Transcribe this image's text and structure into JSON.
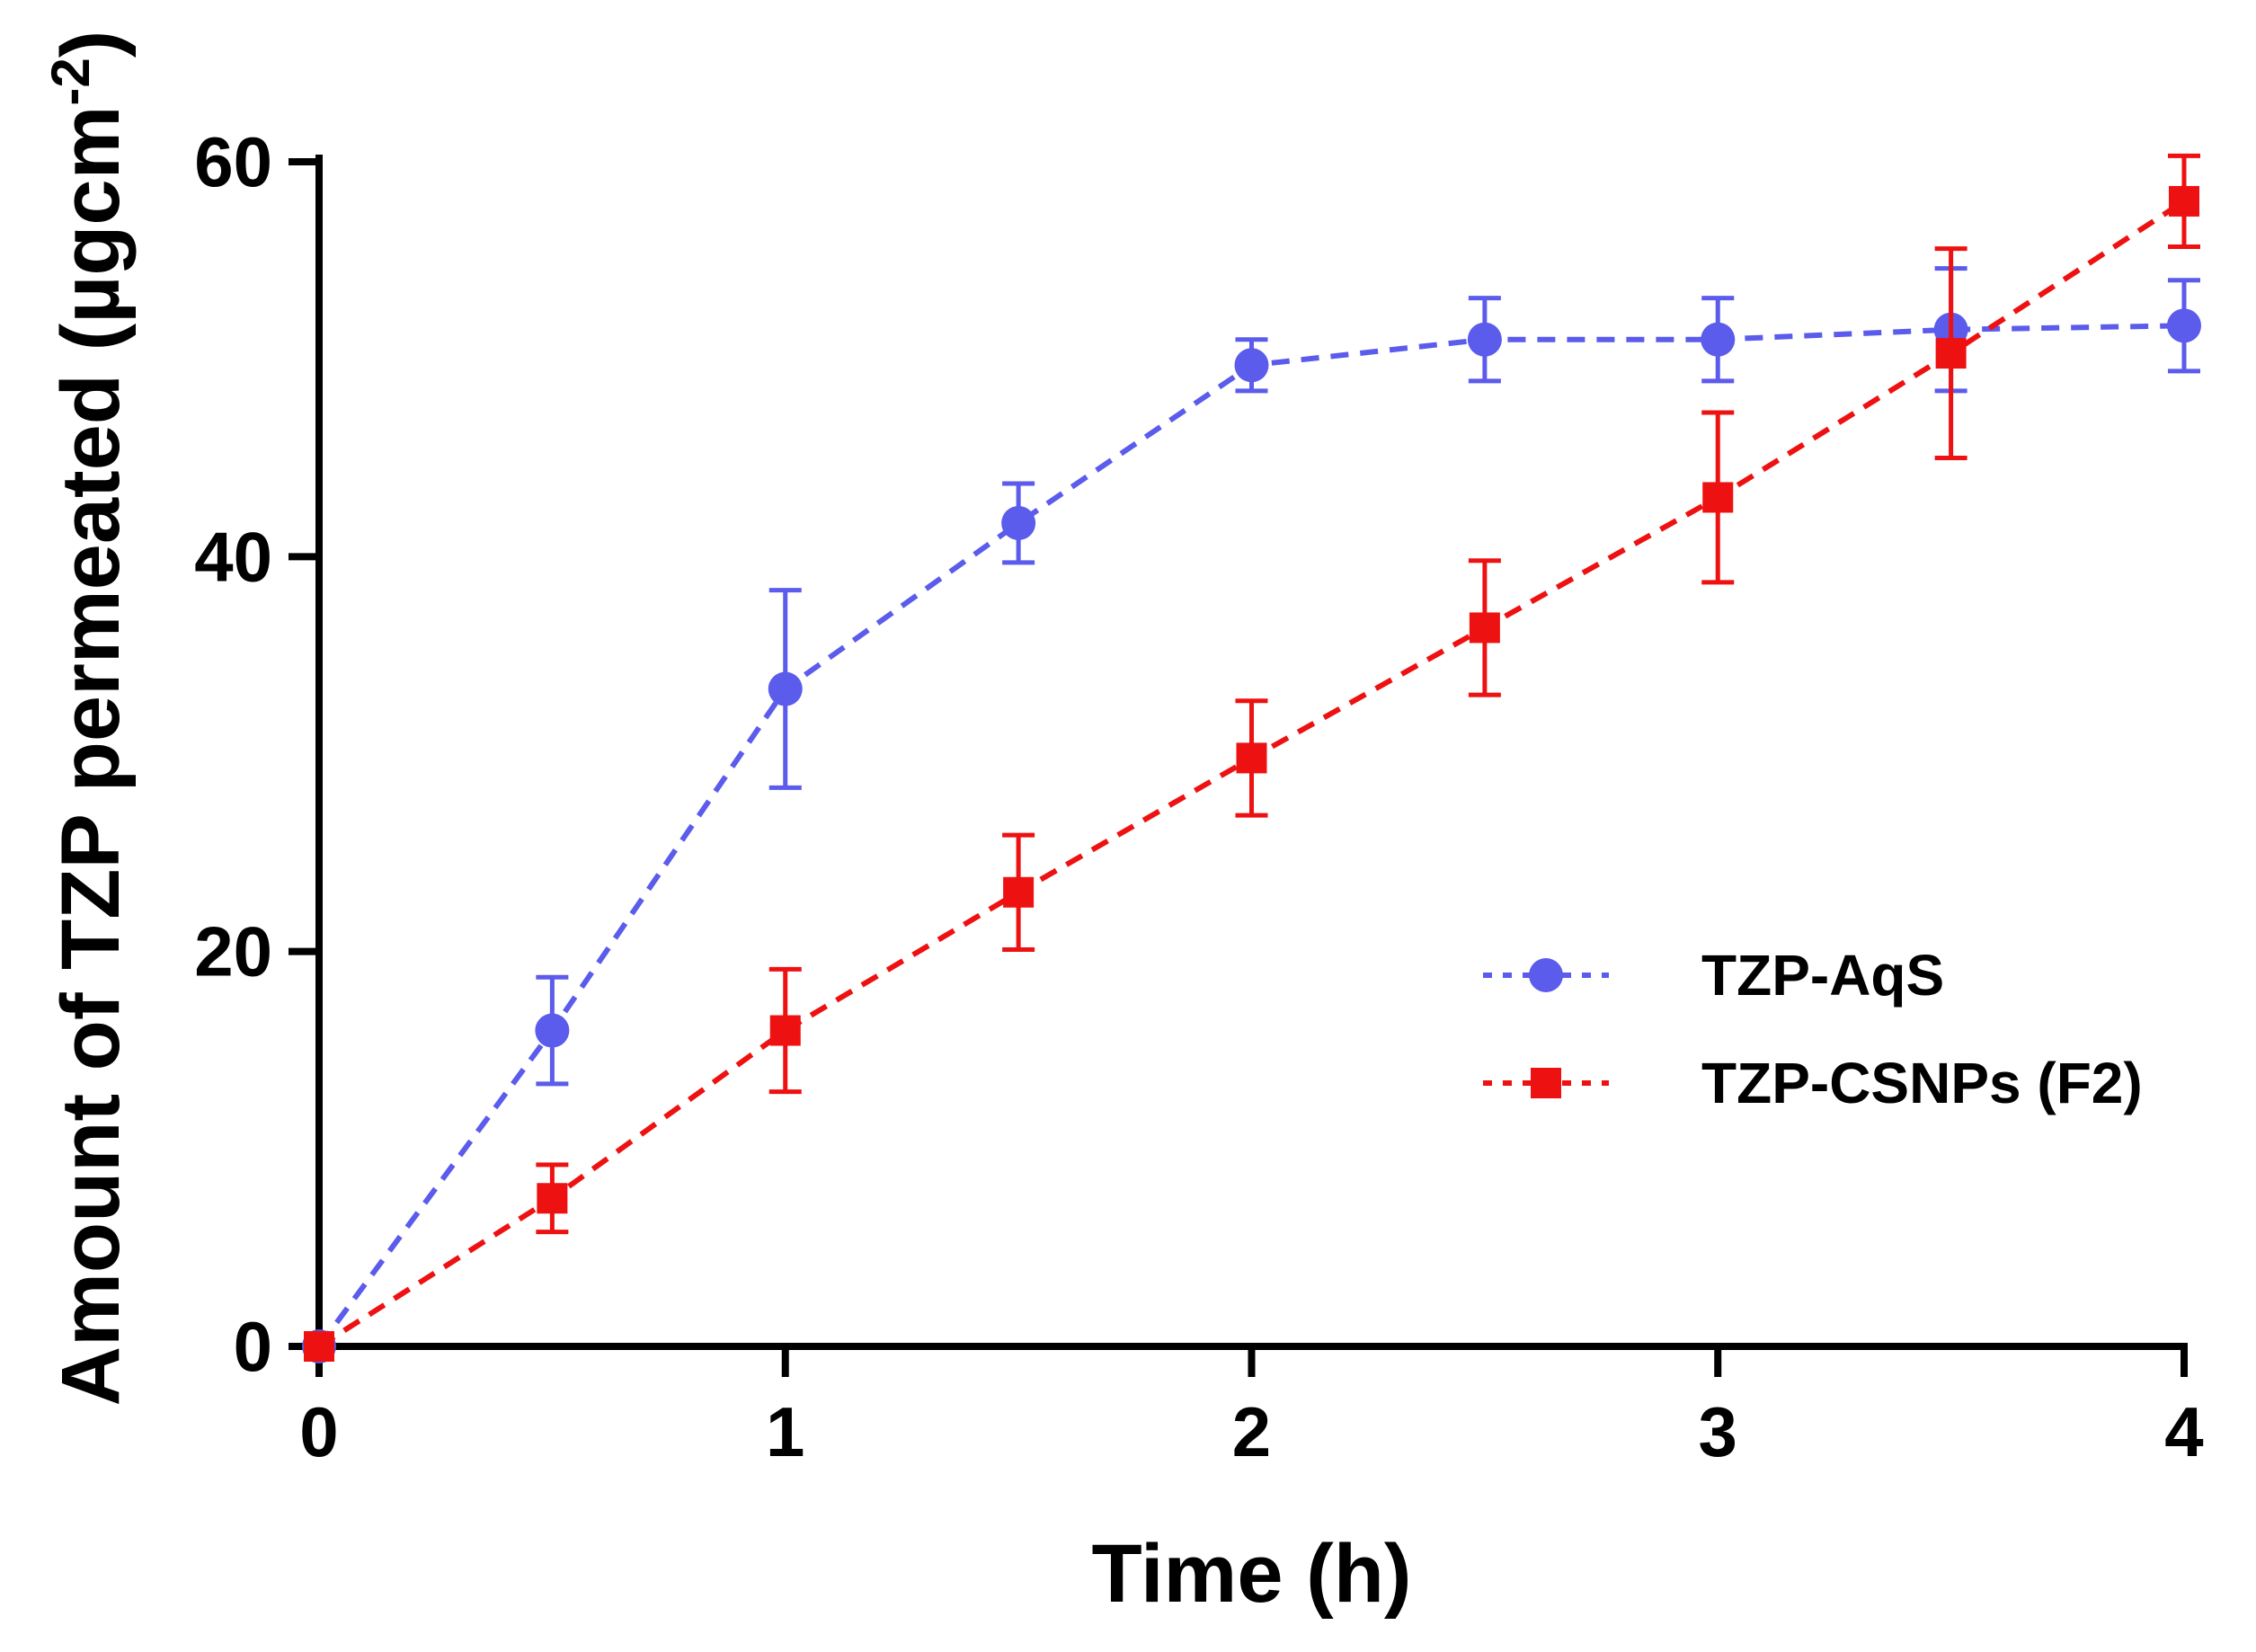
{
  "chart_data": {
    "type": "line",
    "title": "",
    "xlabel": "Time (h)",
    "ylabel": "Amount of TZP permeated (µgcm",
    "ylabel_superscript": "-2",
    "ylabel_close": ")",
    "xlim": [
      0,
      4
    ],
    "ylim": [
      0,
      60
    ],
    "xticks": [
      0,
      1,
      2,
      3,
      4
    ],
    "xtick_labels": [
      "0",
      "1",
      "2",
      "3",
      "4"
    ],
    "yticks": [
      0,
      20,
      40,
      60
    ],
    "ytick_labels": [
      "0",
      "20",
      "40",
      "60"
    ],
    "grid": false,
    "legend_position": "center-right",
    "series": [
      {
        "name": "TZP-AqS",
        "color": "#5b5bec",
        "marker": "circle",
        "line_style": "dashed",
        "x": [
          0,
          0.5,
          1,
          1.5,
          2,
          2.5,
          3,
          3.5,
          4
        ],
        "y": [
          0,
          16.0,
          33.3,
          41.7,
          49.7,
          51.0,
          51.0,
          51.5,
          51.7
        ],
        "error": [
          0,
          2.7,
          5.0,
          2.0,
          1.3,
          2.1,
          2.1,
          3.1,
          2.3
        ]
      },
      {
        "name": "TZP-CSNPs (F2)",
        "color": "#ee1111",
        "marker": "square",
        "line_style": "dashed",
        "x": [
          0,
          0.5,
          1,
          1.5,
          2,
          2.5,
          3,
          3.5,
          4
        ],
        "y": [
          0,
          7.5,
          16.0,
          23.0,
          29.8,
          36.4,
          43.0,
          50.3,
          58.0
        ],
        "error": [
          0,
          1.7,
          3.1,
          2.9,
          2.9,
          3.4,
          4.3,
          5.3,
          2.3
        ]
      }
    ]
  }
}
